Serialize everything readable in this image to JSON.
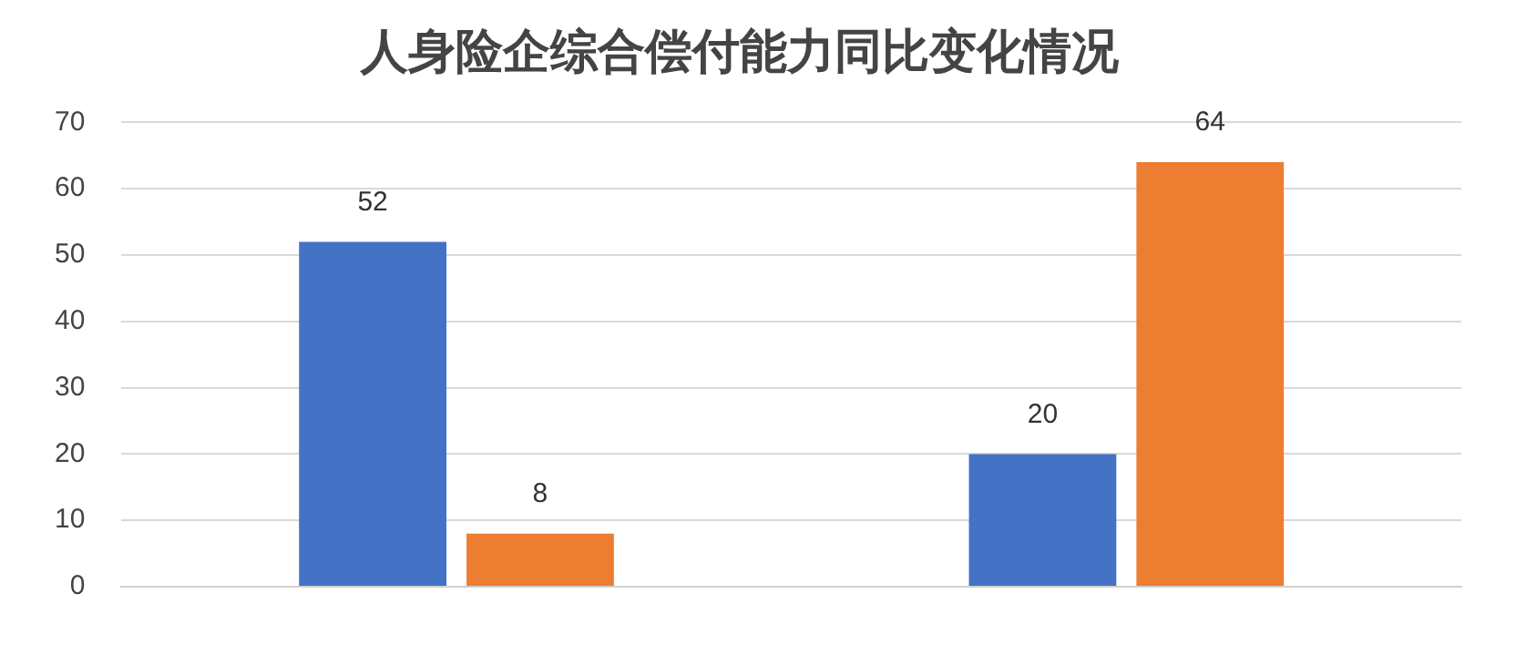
{
  "chart_data": {
    "type": "bar",
    "title": "人身险企综合偿付能力同比变化情况",
    "categories": [
      null,
      null
    ],
    "series": [
      {
        "color": "#4472c4",
        "values": [
          52,
          20
        ]
      },
      {
        "color": "#ed7d31",
        "values": [
          8,
          64
        ]
      }
    ],
    "ylim": [
      0,
      70
    ],
    "yticks": [
      0,
      10,
      20,
      30,
      40,
      50,
      60,
      70
    ],
    "grid": "y",
    "data_labels": true,
    "legend": false
  }
}
